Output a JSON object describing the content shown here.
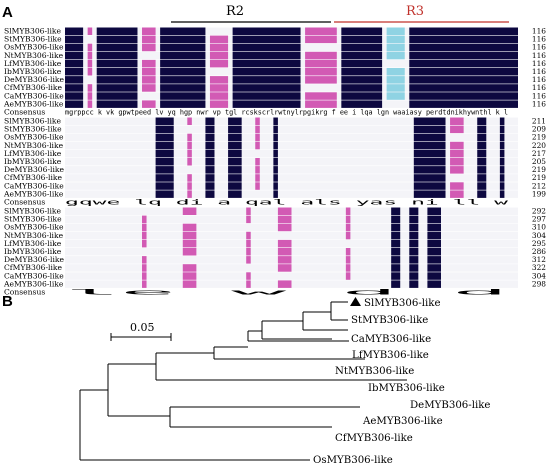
{
  "panel_a": {
    "label": "A",
    "regions": [
      {
        "label": "R2",
        "color": "#000000"
      },
      {
        "label": "R3",
        "color": "#c0312b"
      }
    ],
    "blocks": [
      {
        "rows": [
          {
            "name": "SlMYB306-like",
            "end": "116"
          },
          {
            "name": "StMYB306-like",
            "end": "116"
          },
          {
            "name": "OsMYB306-like",
            "end": "116"
          },
          {
            "name": "NtMYB306-like",
            "end": "116"
          },
          {
            "name": "LfMYB306-like",
            "end": "116"
          },
          {
            "name": "IbMYB306-like",
            "end": "116"
          },
          {
            "name": "DeMYB306-like",
            "end": "116"
          },
          {
            "name": "CfMYB306-like",
            "end": "116"
          },
          {
            "name": "CaMYB306-like",
            "end": "116"
          },
          {
            "name": "AeMYB306-like",
            "end": "116"
          }
        ],
        "consensus": "mgrppcc k vk gpwtpeed lv yq hgp nwr vp tgl rcskscrlrwtnylrpgikrg f ee   i  lqa lgn waaiasy perdtdnikhywnthl k l"
      },
      {
        "rows": [
          {
            "name": "SlMYB306-like",
            "end": "211"
          },
          {
            "name": "StMYB306-like",
            "end": "209"
          },
          {
            "name": "OsMYB306-like",
            "end": "219"
          },
          {
            "name": "NtMYB306-like",
            "end": "220"
          },
          {
            "name": "LfMYB306-like",
            "end": "217"
          },
          {
            "name": "IbMYB306-like",
            "end": "205"
          },
          {
            "name": "DeMYB306-like",
            "end": "219"
          },
          {
            "name": "CfMYB306-like",
            "end": "219"
          },
          {
            "name": "CaMYB306-like",
            "end": "212"
          },
          {
            "name": "AeMYB306-like",
            "end": "199"
          }
        ],
        "consensus": "gqwe  lq di  a qal als                                                    yas   ni  ll    w"
      },
      {
        "rows": [
          {
            "name": "SlMYB306-like",
            "end": "292"
          },
          {
            "name": "StMYB306-like",
            "end": "297"
          },
          {
            "name": "OsMYB306-like",
            "end": "310"
          },
          {
            "name": "NtMYB306-like",
            "end": "304"
          },
          {
            "name": "LfMYB306-like",
            "end": "295"
          },
          {
            "name": "IbMYB306-like",
            "end": "286"
          },
          {
            "name": "DeMYB306-like",
            "end": "312"
          },
          {
            "name": "CfMYB306-like",
            "end": "322"
          },
          {
            "name": "CaMYB306-like",
            "end": "304"
          },
          {
            "name": "AeMYB306-like",
            "end": "298"
          }
        ],
        "consensus": "                                               le w d  d"
      }
    ],
    "consensus_label": "Consensus"
  },
  "panel_b": {
    "label": "B",
    "scale_label": "0.05",
    "marker_icon": "filled-triangle-icon",
    "leaves": [
      {
        "name": "SlMYB306-like",
        "marked": true
      },
      {
        "name": "StMYB306-like",
        "marked": false
      },
      {
        "name": "CaMYB306-like",
        "marked": false
      },
      {
        "name": "LfMYB306-like",
        "marked": false
      },
      {
        "name": "NtMYB306-like",
        "marked": false
      },
      {
        "name": "IbMYB306-like",
        "marked": false
      },
      {
        "name": "DeMYB306-like",
        "marked": false
      },
      {
        "name": "AeMYB306-like",
        "marked": false
      },
      {
        "name": "CfMYB306-like",
        "marked": false
      },
      {
        "name": "OsMYB306-like",
        "marked": false
      }
    ]
  },
  "colors": {
    "identical": "#0d0840",
    "highly_conserved": "#d25ab4",
    "conserved": "#8fd3e3",
    "text_on_dark": "#ffffff",
    "region_r3": "#c0312b"
  }
}
